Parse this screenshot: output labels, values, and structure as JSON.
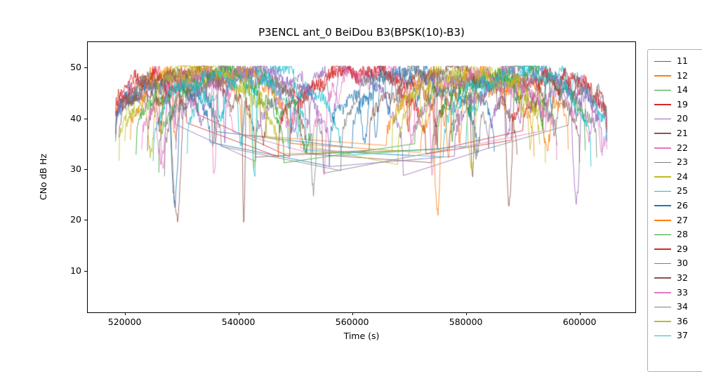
{
  "chart_data": {
    "type": "line",
    "title": "P3ENCL ant_0 BeiDou B3(BPSK(10)-B3)",
    "xlabel": "Time (s)",
    "ylabel": "CNo dB Hz",
    "xlim": [
      513500,
      609800
    ],
    "ylim": [
      1.8,
      55.0
    ],
    "xticks": [
      520000,
      540000,
      560000,
      580000,
      600000
    ],
    "yticks": [
      10,
      20,
      30,
      40,
      50
    ],
    "grid": false,
    "legend_position": "right-outside",
    "sample_step_s": 100,
    "noise_db": 1.3,
    "ceiling_db": 50.3,
    "series": [
      {
        "name": "11",
        "color": "#1f77b4",
        "arcs": [
          [
            518400,
            536000,
            47.5,
            36
          ],
          [
            560000,
            585000,
            49.0,
            34
          ]
        ]
      },
      {
        "name": "12",
        "color": "#ff7f0e",
        "arcs": [
          [
            518400,
            542000,
            49.5,
            38
          ],
          [
            566000,
            592000,
            48.5,
            33
          ]
        ]
      },
      {
        "name": "14",
        "color": "#2ca02c",
        "arcs": [
          [
            522000,
            548000,
            48.5,
            32
          ],
          [
            571000,
            596000,
            47.5,
            34
          ]
        ]
      },
      {
        "name": "19",
        "color": "#d62728",
        "arcs": [
          [
            518400,
            533000,
            48.5,
            40
          ],
          [
            549000,
            575000,
            49.5,
            33
          ],
          [
            590000,
            604800,
            48.0,
            38
          ]
        ]
      },
      {
        "name": "20",
        "color": "#9467bd",
        "arcs": [
          [
            518400,
            529000,
            46.0,
            38
          ],
          [
            543000,
            569000,
            49.5,
            31
          ],
          [
            584000,
            604800,
            48.5,
            36
          ]
        ]
      },
      {
        "name": "21",
        "color": "#8c564b",
        "arcs": [
          [
            524000,
            552000,
            49.0,
            33
          ],
          [
            574000,
            600000,
            48.5,
            32
          ]
        ]
      },
      {
        "name": "22",
        "color": "#e377c2",
        "arcs": [
          [
            518400,
            539000,
            48.5,
            36
          ],
          [
            553000,
            579000,
            49.5,
            34
          ],
          [
            594000,
            604800,
            47.0,
            37
          ]
        ]
      },
      {
        "name": "23",
        "color": "#7f7f7f",
        "arcs": [
          [
            527000,
            555000,
            49.5,
            30
          ],
          [
            577000,
            603000,
            49.0,
            33
          ]
        ]
      },
      {
        "name": "24",
        "color": "#bcbd22",
        "arcs": [
          [
            519000,
            545000,
            49.5,
            34
          ],
          [
            568000,
            594000,
            49.0,
            32
          ]
        ]
      },
      {
        "name": "25",
        "color": "#17becf",
        "arcs": [
          [
            531000,
            558000,
            49.0,
            32
          ],
          [
            580000,
            604800,
            49.5,
            35
          ]
        ]
      },
      {
        "name": "26",
        "color": "#1f77b4",
        "arcs": [
          [
            518400,
            535000,
            47.0,
            36
          ],
          [
            556000,
            582000,
            49.0,
            32
          ]
        ]
      },
      {
        "name": "27",
        "color": "#ff7f0e",
        "arcs": [
          [
            521000,
            549000,
            49.5,
            35
          ],
          [
            572000,
            598000,
            48.5,
            33
          ]
        ]
      },
      {
        "name": "28",
        "color": "#2ca02c",
        "arcs": [
          [
            526000,
            553000,
            48.5,
            32
          ],
          [
            575000,
            601000,
            49.0,
            34
          ]
        ]
      },
      {
        "name": "29",
        "color": "#d62728",
        "arcs": [
          [
            518400,
            531000,
            47.5,
            39
          ],
          [
            547000,
            573000,
            49.5,
            32
          ],
          [
            588000,
            604800,
            48.5,
            37
          ]
        ]
      },
      {
        "name": "30",
        "color": "#9467bd",
        "arcs": [
          [
            529000,
            556000,
            49.0,
            33
          ],
          [
            578000,
            604000,
            48.5,
            32
          ]
        ]
      },
      {
        "name": "32",
        "color": "#8c564b",
        "arcs": [
          [
            519000,
            543000,
            48.5,
            35
          ],
          [
            563000,
            589000,
            49.5,
            33
          ]
        ]
      },
      {
        "name": "33",
        "color": "#e377c2",
        "arcs": [
          [
            523000,
            551000,
            49.5,
            34
          ],
          [
            570000,
            596000,
            48.0,
            32
          ]
        ]
      },
      {
        "name": "34",
        "color": "#7f7f7f",
        "arcs": [
          [
            518400,
            537000,
            48.0,
            35
          ],
          [
            558000,
            584000,
            49.5,
            32
          ],
          [
            598000,
            604800,
            46.0,
            38
          ]
        ]
      },
      {
        "name": "36",
        "color": "#bcbd22",
        "arcs": [
          [
            520000,
            547000,
            49.0,
            33
          ],
          [
            567000,
            593000,
            49.5,
            34
          ]
        ]
      },
      {
        "name": "37",
        "color": "#17becf",
        "arcs": [
          [
            525000,
            552000,
            48.5,
            32
          ],
          [
            576000,
            602000,
            49.0,
            33
          ]
        ]
      }
    ]
  }
}
